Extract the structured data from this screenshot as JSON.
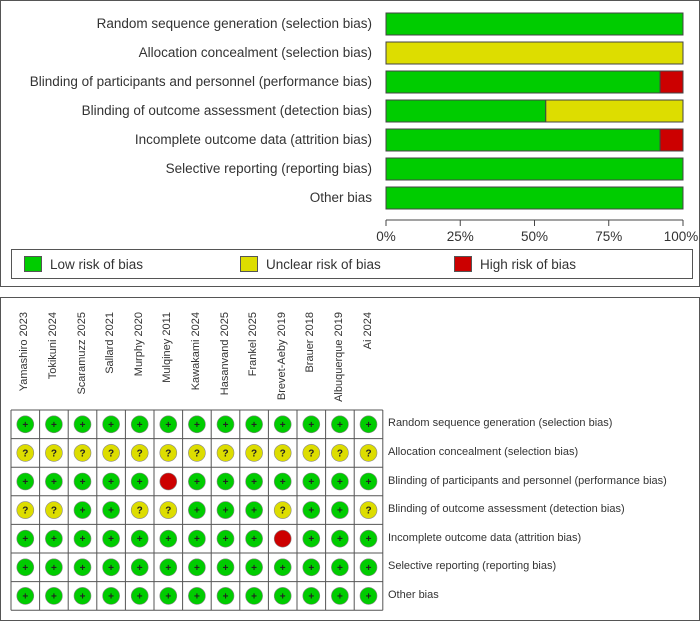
{
  "chart_data": [
    {
      "type": "bar",
      "orientation": "horizontal",
      "stacked": true,
      "categories": [
        "Random sequence generation (selection bias)",
        "Allocation concealment (selection bias)",
        "Blinding of participants and personnel (performance bias)",
        "Blinding of outcome assessment (detection bias)",
        "Incomplete outcome data (attrition bias)",
        "Selective reporting (reporting bias)",
        "Other bias"
      ],
      "series": [
        {
          "name": "Low risk of bias",
          "color": "#00cc00",
          "values": [
            100,
            0,
            92.3,
            53.8,
            92.3,
            100,
            100
          ]
        },
        {
          "name": "Unclear risk of bias",
          "color": "#dddd00",
          "values": [
            0,
            100,
            0,
            46.2,
            0,
            0,
            0
          ]
        },
        {
          "name": "High risk of bias",
          "color": "#cc0000",
          "values": [
            0,
            0,
            7.7,
            0,
            7.7,
            0,
            0
          ]
        }
      ],
      "x_ticks": [
        "0%",
        "25%",
        "50%",
        "75%",
        "100%"
      ],
      "xlim": [
        0,
        100
      ],
      "legend_position": "bottom"
    },
    {
      "type": "table",
      "studies": [
        "Yamashiro 2023",
        "Tokikuni 2024",
        "Scaramuzz 2025",
        "Sallard 2021",
        "Murphy 2020",
        "Mulqiney 2011",
        "Kawakami 2024",
        "Hasanvand 2025",
        "Frankel 2025",
        "Brevet-Aeby 2019",
        "Brauer 2018",
        "Albuquerque 2019",
        "Ai 2024"
      ],
      "domains": [
        "Random sequence generation (selection bias)",
        "Allocation concealment (selection bias)",
        "Blinding of participants and personnel (performance bias)",
        "Blinding of outcome assessment (detection bias)",
        "Incomplete outcome data (attrition bias)",
        "Selective reporting (reporting bias)",
        "Other bias"
      ],
      "judgements": [
        [
          "+",
          "+",
          "+",
          "+",
          "+",
          "+",
          "+",
          "+",
          "+",
          "+",
          "+",
          "+",
          "+"
        ],
        [
          "?",
          "?",
          "?",
          "?",
          "?",
          "?",
          "?",
          "?",
          "?",
          "?",
          "?",
          "?",
          "?"
        ],
        [
          "+",
          "+",
          "+",
          "+",
          "+",
          "-",
          "+",
          "+",
          "+",
          "+",
          "+",
          "+",
          "+"
        ],
        [
          "?",
          "?",
          "+",
          "+",
          "?",
          "?",
          "+",
          "+",
          "+",
          "?",
          "+",
          "+",
          "?"
        ],
        [
          "+",
          "+",
          "+",
          "+",
          "+",
          "+",
          "+",
          "+",
          "+",
          "-",
          "+",
          "+",
          "+"
        ],
        [
          "+",
          "+",
          "+",
          "+",
          "+",
          "+",
          "+",
          "+",
          "+",
          "+",
          "+",
          "+",
          "+"
        ],
        [
          "+",
          "+",
          "+",
          "+",
          "+",
          "+",
          "+",
          "+",
          "+",
          "+",
          "+",
          "+",
          "+"
        ]
      ],
      "symbols": {
        "low": "+",
        "unclear": "?",
        "high": ""
      },
      "colors": {
        "low": "#00cc00",
        "unclear": "#dddd00",
        "high": "#cc0000"
      }
    }
  ]
}
